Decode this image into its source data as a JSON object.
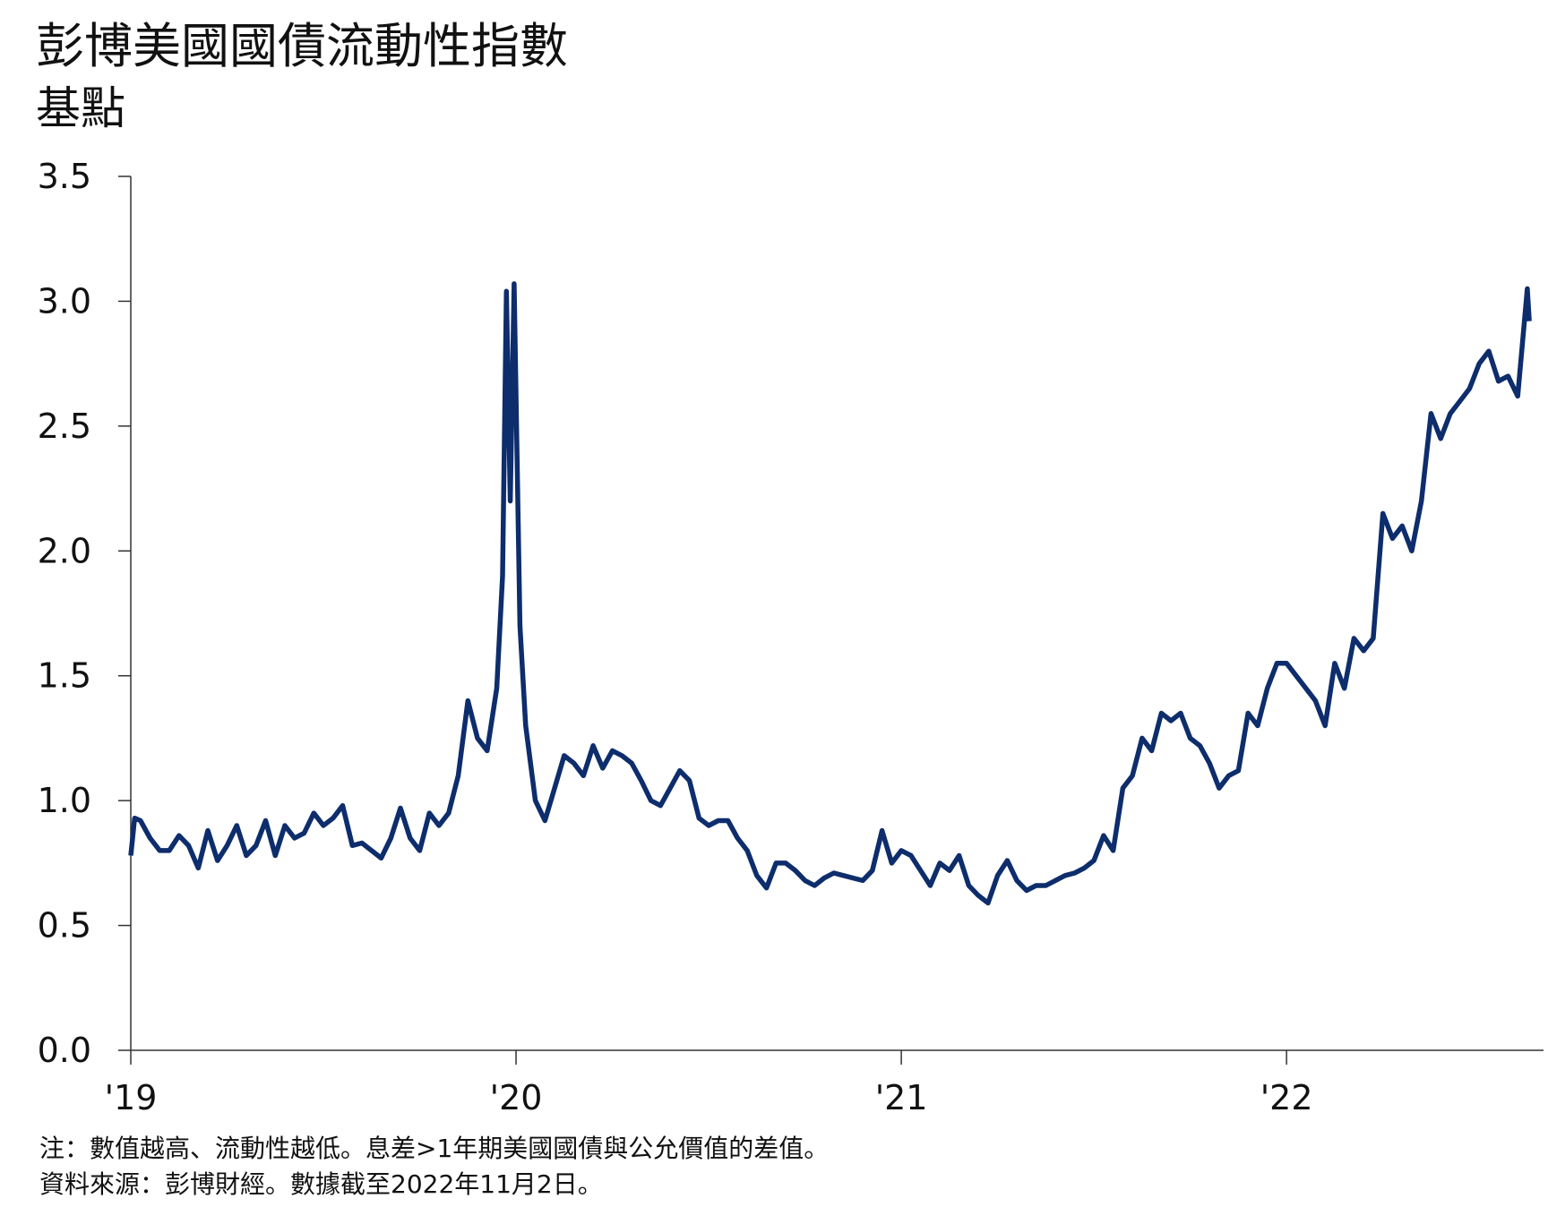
{
  "chart_data": {
    "type": "line",
    "title": "彭博美國國債流動性指數",
    "subtitle": "基點",
    "notes": [
      "注：數值越高、流動性越低。息差>1年期美國國債與公允價值的差值。",
      "資料來源：彭博財經。數據截至2022年11月2日。"
    ],
    "xlim": [
      2019,
      2022.667
    ],
    "xticks": [
      {
        "value": 2019,
        "label": "'19"
      },
      {
        "value": 2020,
        "label": "'20"
      },
      {
        "value": 2021,
        "label": "'21"
      },
      {
        "value": 2022,
        "label": "'22"
      }
    ],
    "ylim": [
      0,
      3.5
    ],
    "yticks": [
      {
        "value": 0,
        "label": "0.0"
      },
      0.5,
      {
        "value": 1,
        "label": "1.0"
      },
      1.5,
      {
        "value": 2,
        "label": "2.0"
      },
      2.5,
      {
        "value": 3,
        "label": "3.0"
      },
      3.5
    ],
    "x": [
      2019.0,
      2019.01,
      2019.025,
      2019.05,
      2019.075,
      2019.1,
      2019.125,
      2019.15,
      2019.175,
      2019.2,
      2019.225,
      2019.25,
      2019.275,
      2019.3,
      2019.325,
      2019.35,
      2019.375,
      2019.4,
      2019.425,
      2019.45,
      2019.475,
      2019.5,
      2019.525,
      2019.55,
      2019.575,
      2019.6,
      2019.625,
      2019.65,
      2019.675,
      2019.7,
      2019.725,
      2019.75,
      2019.775,
      2019.8,
      2019.825,
      2019.85,
      2019.875,
      2019.9,
      2019.925,
      2019.95,
      2019.965,
      2019.975,
      2019.985,
      2019.995,
      2020.01,
      2020.025,
      2020.05,
      2020.075,
      2020.1,
      2020.125,
      2020.15,
      2020.175,
      2020.2,
      2020.225,
      2020.25,
      2020.275,
      2020.3,
      2020.325,
      2020.35,
      2020.375,
      2020.4,
      2020.425,
      2020.45,
      2020.475,
      2020.5,
      2020.525,
      2020.55,
      2020.575,
      2020.6,
      2020.625,
      2020.65,
      2020.675,
      2020.7,
      2020.725,
      2020.75,
      2020.775,
      2020.8,
      2020.825,
      2020.85,
      2020.875,
      2020.9,
      2020.925,
      2020.95,
      2020.975,
      2021.0,
      2021.025,
      2021.05,
      2021.075,
      2021.1,
      2021.125,
      2021.15,
      2021.175,
      2021.2,
      2021.225,
      2021.25,
      2021.275,
      2021.3,
      2021.325,
      2021.35,
      2021.375,
      2021.4,
      2021.425,
      2021.45,
      2021.475,
      2021.5,
      2021.525,
      2021.55,
      2021.575,
      2021.6,
      2021.625,
      2021.65,
      2021.675,
      2021.7,
      2021.725,
      2021.75,
      2021.775,
      2021.8,
      2021.825,
      2021.85,
      2021.875,
      2021.9,
      2021.925,
      2021.95,
      2021.975,
      2022.0,
      2022.025,
      2022.05,
      2022.075,
      2022.1,
      2022.125,
      2022.15,
      2022.175,
      2022.2,
      2022.225,
      2022.25,
      2022.275,
      2022.3,
      2022.325,
      2022.35,
      2022.375,
      2022.4,
      2022.425,
      2022.45,
      2022.475,
      2022.5,
      2022.525,
      2022.55,
      2022.575,
      2022.6,
      2022.625,
      2022.63
    ],
    "series": [
      {
        "color": "#0d2d6c",
        "values": [
          0.78,
          0.93,
          0.92,
          0.85,
          0.8,
          0.8,
          0.86,
          0.82,
          0.73,
          0.88,
          0.76,
          0.82,
          0.9,
          0.78,
          0.82,
          0.92,
          0.78,
          0.9,
          0.85,
          0.87,
          0.95,
          0.9,
          0.93,
          0.98,
          0.82,
          0.83,
          0.8,
          0.77,
          0.85,
          0.97,
          0.85,
          0.8,
          0.95,
          0.9,
          0.95,
          1.1,
          1.4,
          1.25,
          1.2,
          1.45,
          1.9,
          3.04,
          2.2,
          3.07,
          1.7,
          1.3,
          1.0,
          0.92,
          1.05,
          1.18,
          1.15,
          1.1,
          1.22,
          1.13,
          1.2,
          1.18,
          1.15,
          1.08,
          1.0,
          0.98,
          1.05,
          1.12,
          1.08,
          0.93,
          0.9,
          0.92,
          0.92,
          0.85,
          0.8,
          0.7,
          0.65,
          0.75,
          0.75,
          0.72,
          0.68,
          0.66,
          0.69,
          0.71,
          0.7,
          0.69,
          0.68,
          0.72,
          0.88,
          0.75,
          0.8,
          0.78,
          0.72,
          0.66,
          0.75,
          0.72,
          0.78,
          0.66,
          0.62,
          0.59,
          0.7,
          0.76,
          0.68,
          0.64,
          0.66,
          0.66,
          0.68,
          0.7,
          0.71,
          0.73,
          0.76,
          0.86,
          0.8,
          1.05,
          1.1,
          1.25,
          1.2,
          1.35,
          1.32,
          1.35,
          1.25,
          1.22,
          1.15,
          1.05,
          1.1,
          1.12,
          1.35,
          1.3,
          1.45,
          1.55,
          1.55,
          1.5,
          1.45,
          1.4,
          1.3,
          1.55,
          1.45,
          1.65,
          1.6,
          1.65,
          2.15,
          2.05,
          2.1,
          2.0,
          2.2,
          2.55,
          2.45,
          2.55,
          2.6,
          2.65,
          2.75,
          2.8,
          2.68,
          2.7,
          2.62,
          3.05,
          2.92
        ]
      }
    ]
  }
}
